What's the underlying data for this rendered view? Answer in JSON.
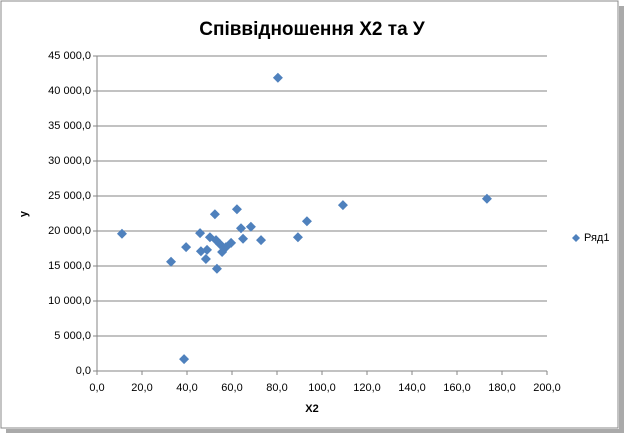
{
  "chart_data": {
    "type": "scatter",
    "title": "Співвідношення Х2 та У",
    "x_label": "Х2",
    "y_label": "у",
    "series": [
      {
        "name": "Ряд1",
        "color": "#4f81bd",
        "x": [
          11.1,
          32.9,
          38.7,
          39.6,
          45.8,
          46.2,
          48.4,
          48.9,
          50.2,
          52.4,
          53.3,
          52.9,
          54.7,
          55.6,
          57.3,
          59.6,
          62.2,
          64.0,
          64.9,
          68.4,
          72.9,
          80.4,
          89.3,
          93.3,
          109.3,
          173.3
        ],
        "values": [
          19600,
          15600,
          1700,
          17700,
          19700,
          17100,
          16000,
          17300,
          19100,
          22400,
          14600,
          18700,
          18100,
          17000,
          17700,
          18300,
          23100,
          20400,
          18900,
          20600,
          18700,
          41900,
          19100,
          21400,
          23700,
          24600
        ]
      }
    ],
    "xlim": [
      0,
      200
    ],
    "xticks": [
      {
        "value": 0,
        "label": "0,0"
      },
      {
        "value": 20,
        "label": "20,0"
      },
      {
        "value": 40,
        "label": "40,0"
      },
      {
        "value": 60,
        "label": "60,0"
      },
      {
        "value": 80,
        "label": "80,0"
      },
      {
        "value": 100,
        "label": "100,0"
      },
      {
        "value": 120,
        "label": "120,0"
      },
      {
        "value": 140,
        "label": "140,0"
      },
      {
        "value": 160,
        "label": "160,0"
      },
      {
        "value": 180,
        "label": "180,0"
      },
      {
        "value": 200,
        "label": "200,0"
      }
    ],
    "ylim": [
      0,
      45000
    ],
    "yticks": [
      {
        "value": 0,
        "label": "0,0"
      },
      {
        "value": 5000,
        "label": "5 000,0"
      },
      {
        "value": 10000,
        "label": "10 000,0"
      },
      {
        "value": 15000,
        "label": "15 000,0"
      },
      {
        "value": 20000,
        "label": "20 000,0"
      },
      {
        "value": 25000,
        "label": "25 000,0"
      },
      {
        "value": 30000,
        "label": "30 000,0"
      },
      {
        "value": 35000,
        "label": "35 000,0"
      },
      {
        "value": 40000,
        "label": "40 000,0"
      },
      {
        "value": 45000,
        "label": "45 000,0"
      }
    ],
    "grid": true,
    "legend": "right"
  }
}
